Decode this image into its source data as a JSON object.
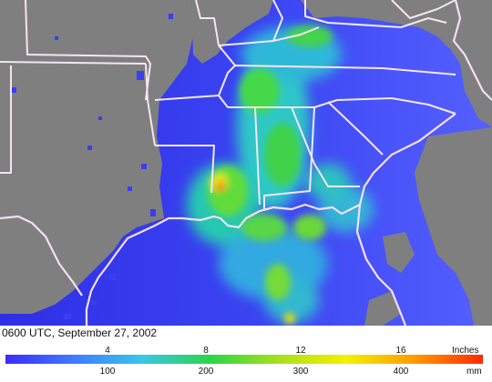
{
  "map": {
    "caption": "0600 UTC, September 27, 2002",
    "colors": {
      "land": "#7f7f7f",
      "water_low": "#3030e8",
      "water_high": "#5a6cff",
      "border": "#f2e4ee"
    }
  },
  "legend": {
    "inches_unit": "Inches",
    "mm_unit": "mm",
    "inches_ticks": [
      "4",
      "8",
      "12",
      "16"
    ],
    "mm_ticks": [
      "100",
      "200",
      "300",
      "400"
    ],
    "colorbar_stops": [
      "#3b2cff",
      "#3f7bff",
      "#39c6e8",
      "#29d64a",
      "#a8e01c",
      "#f4f000",
      "#ff9a00",
      "#ff2a00"
    ]
  }
}
